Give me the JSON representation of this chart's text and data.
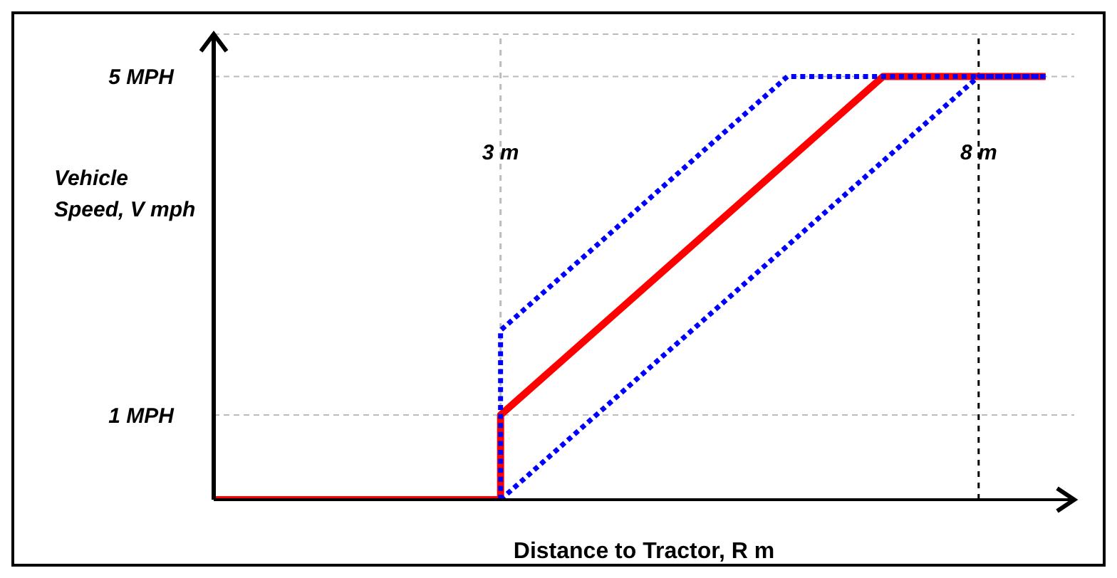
{
  "chart_data": {
    "type": "line",
    "xlabel": "Distance to Tractor, R m",
    "ylabel": "Vehicle Speed, V mph",
    "xlim": [
      0,
      9
    ],
    "ylim": [
      0,
      5.5
    ],
    "yticks": [
      {
        "value": 1,
        "label": "1 MPH"
      },
      {
        "value": 5,
        "label": "5 MPH"
      }
    ],
    "tick_labels": "y",
    "grid": "y",
    "marker": "none",
    "series": [
      {
        "color": "#ff0000",
        "line_style": "solid",
        "x": [
          0,
          3,
          3,
          7,
          8.7
        ],
        "values": [
          0,
          0,
          1,
          5,
          5
        ]
      },
      {
        "color": "#0000ff",
        "line_style": "dotted",
        "x": [
          3,
          3,
          6,
          8.7
        ],
        "values": [
          0,
          2,
          5,
          5
        ]
      },
      {
        "color": "#0000ff",
        "line_style": "dotted",
        "x": [
          3,
          8,
          8.7
        ],
        "values": [
          0,
          5,
          5
        ]
      }
    ],
    "ref_lines": [
      {
        "axis": "x",
        "value": 3,
        "label": "3 m",
        "color": "#bbbbbb",
        "line_style": "dashed"
      },
      {
        "axis": "x",
        "value": 8,
        "label": "8 m",
        "color": "#000000",
        "line_style": "dashed"
      }
    ]
  }
}
